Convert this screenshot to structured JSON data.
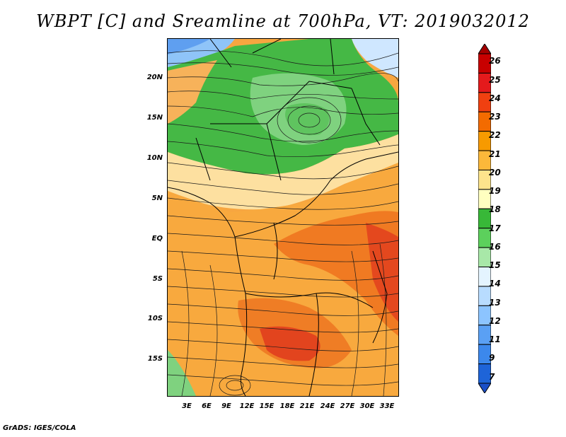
{
  "title": "WBPT [C] and Sreamline at 700hPa, VT: 2019032012",
  "footer": "GrADS: IGES/COLA",
  "y_ticks": [
    "20N",
    "15N",
    "10N",
    "5N",
    "EQ",
    "5S",
    "10S",
    "15S"
  ],
  "x_ticks": [
    "3E",
    "6E",
    "9E",
    "12E",
    "15E",
    "18E",
    "21E",
    "24E",
    "27E",
    "30E",
    "33E"
  ],
  "colorbar": {
    "labels": [
      "26",
      "25",
      "24",
      "23",
      "22",
      "21",
      "20",
      "19",
      "18",
      "17",
      "16",
      "15",
      "14",
      "13",
      "12",
      "11",
      "9",
      "7"
    ],
    "colors": [
      "#a50000",
      "#c80000",
      "#e41a1c",
      "#f04010",
      "#f36b00",
      "#f79a00",
      "#fbb83a",
      "#fde48c",
      "#ffffc0",
      "#38b838",
      "#5cd05c",
      "#a8e8a8",
      "#e4f4ff",
      "#b8dcff",
      "#8cc4ff",
      "#5aa0f4",
      "#3c88ec",
      "#1e64d8",
      "#1a4fc8"
    ]
  },
  "legend_colors": {
    "cool_green": "#3cb53c",
    "light_green": "#8ad88a",
    "pale_yellow": "#fde8a0",
    "orange_light": "#fbbd46",
    "orange": "#f59a22",
    "orange_dark": "#ee6a18",
    "red": "#e23c1c",
    "blue": "#62a6f0",
    "light_blue": "#bfe0ff"
  }
}
